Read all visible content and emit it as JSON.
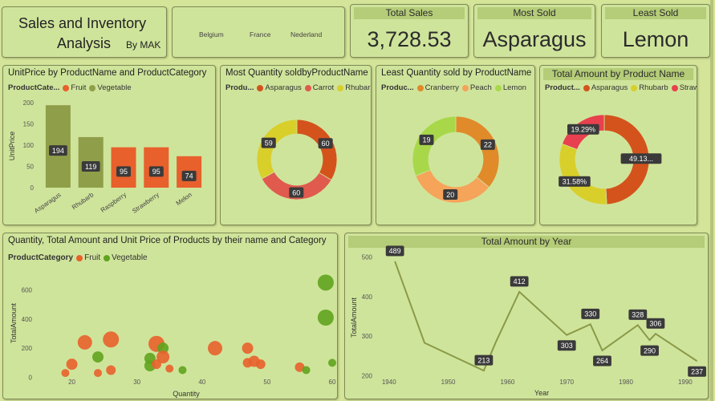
{
  "title": {
    "line1": "Sales and Inventory",
    "line2": "Analysis",
    "byline": "By MAK"
  },
  "slicer": {
    "countries": [
      "Belgium",
      "France",
      "Nederland"
    ]
  },
  "kpis": {
    "total_sales": {
      "label": "Total Sales",
      "value": "3,728.53"
    },
    "most_sold": {
      "label": "Most Sold",
      "value": "Asparagus"
    },
    "least_sold": {
      "label": "Least Sold",
      "value": "Lemon"
    }
  },
  "colors": {
    "fruit": "#e8602c",
    "vegetable": "#8f9e48",
    "asparagus": "#d4531c",
    "carrot": "#e05a4e",
    "rhubarb": "#d9cf2a",
    "cranberry": "#e08a2a",
    "peach": "#f5a45a",
    "lemon": "#a8d84a",
    "strawberry": "#e8404e",
    "green": "#5fa31e",
    "line": "#8a9a48"
  },
  "chart_data": [
    {
      "id": "unitprice",
      "type": "bar",
      "title": "UnitPrice by ProductName and ProductCategory",
      "legend_title": "ProductCate...",
      "legend": [
        "Fruit",
        "Vegetable"
      ],
      "ylabel": "UnitPrice",
      "ylim": [
        0,
        200
      ],
      "yticks": [
        "0",
        "50",
        "100",
        "150",
        "200"
      ],
      "categories": [
        "Asparagus",
        "Rhubarb",
        "Raspberry",
        "Strawberry",
        "Melon"
      ],
      "category_type": [
        "Vegetable",
        "Vegetable",
        "Fruit",
        "Fruit",
        "Fruit"
      ],
      "values": [
        194,
        119,
        95,
        95,
        74
      ]
    },
    {
      "id": "mostqty",
      "type": "pie",
      "title": "Most Quantity soldbyProductName",
      "legend_title": "Produ...",
      "labels": [
        "Asparagus",
        "Carrot",
        "Rhubarb"
      ],
      "values": [
        60,
        60,
        59
      ]
    },
    {
      "id": "leastqty",
      "type": "pie",
      "title": "Least Quantity sold by ProductName",
      "legend_title": "Produc...",
      "labels": [
        "Cranberry",
        "Peach",
        "Lemon"
      ],
      "values": [
        22,
        20,
        19
      ]
    },
    {
      "id": "totalamt",
      "type": "pie",
      "title": "Total Amount by Product Name",
      "legend_title": "Product...",
      "labels": [
        "Asparagus",
        "Rhubarb",
        "Strawbe..."
      ],
      "values": [
        49.13,
        31.58,
        19.29
      ],
      "value_labels": [
        "49.13...",
        "31.58%",
        "19.29%"
      ]
    },
    {
      "id": "scatter",
      "type": "scatter",
      "title": "Quantity, Total Amount and Unit Price of Products by their name and Category",
      "legend_title": "ProductCategory",
      "legend": [
        "Fruit",
        "Vegetable"
      ],
      "xlabel": "Quantity",
      "ylabel": "TotalAmount",
      "xlim": [
        15,
        60
      ],
      "ylim": [
        -30,
        740
      ],
      "xticks": [
        20,
        30,
        40,
        50,
        60
      ],
      "yticks": [
        0,
        200,
        400,
        600
      ],
      "points": [
        {
          "x": 19,
          "y": 30,
          "r": 5,
          "c": "Fruit"
        },
        {
          "x": 20,
          "y": 90,
          "r": 7,
          "c": "Fruit"
        },
        {
          "x": 22,
          "y": 240,
          "r": 9,
          "c": "Fruit"
        },
        {
          "x": 24,
          "y": 30,
          "r": 5,
          "c": "Fruit"
        },
        {
          "x": 24,
          "y": 140,
          "r": 7,
          "c": "Vegetable"
        },
        {
          "x": 26,
          "y": 50,
          "r": 6,
          "c": "Fruit"
        },
        {
          "x": 26,
          "y": 260,
          "r": 10,
          "c": "Fruit"
        },
        {
          "x": 32,
          "y": 130,
          "r": 7,
          "c": "Vegetable"
        },
        {
          "x": 32,
          "y": 80,
          "r": 7,
          "c": "Vegetable"
        },
        {
          "x": 33,
          "y": 230,
          "r": 10,
          "c": "Fruit"
        },
        {
          "x": 33,
          "y": 90,
          "r": 6,
          "c": "Fruit"
        },
        {
          "x": 34,
          "y": 200,
          "r": 7,
          "c": "Vegetable"
        },
        {
          "x": 34,
          "y": 140,
          "r": 8,
          "c": "Fruit"
        },
        {
          "x": 35,
          "y": 60,
          "r": 5,
          "c": "Fruit"
        },
        {
          "x": 37,
          "y": 50,
          "r": 5,
          "c": "Vegetable"
        },
        {
          "x": 42,
          "y": 200,
          "r": 9,
          "c": "Fruit"
        },
        {
          "x": 47,
          "y": 200,
          "r": 7,
          "c": "Fruit"
        },
        {
          "x": 47,
          "y": 100,
          "r": 6,
          "c": "Fruit"
        },
        {
          "x": 48,
          "y": 110,
          "r": 7,
          "c": "Fruit"
        },
        {
          "x": 49,
          "y": 90,
          "r": 6,
          "c": "Fruit"
        },
        {
          "x": 55,
          "y": 70,
          "r": 6,
          "c": "Fruit"
        },
        {
          "x": 56,
          "y": 50,
          "r": 5,
          "c": "Vegetable"
        },
        {
          "x": 59,
          "y": 650,
          "r": 10,
          "c": "Vegetable"
        },
        {
          "x": 59,
          "y": 410,
          "r": 10,
          "c": "Vegetable"
        },
        {
          "x": 60,
          "y": 100,
          "r": 5,
          "c": "Vegetable"
        }
      ]
    },
    {
      "id": "line",
      "type": "line",
      "title": "Total Amount by Year",
      "xlabel": "Year",
      "ylabel": "TotalAmount",
      "xlim": [
        1938,
        1993
      ],
      "ylim": [
        195,
        505
      ],
      "xticks": [
        1940,
        1950,
        1960,
        1970,
        1980,
        1990
      ],
      "yticks": [
        200,
        300,
        400,
        500
      ],
      "x": [
        1941,
        1946,
        1956,
        1958,
        1962,
        1970,
        1974,
        1976,
        1982,
        1984,
        1985,
        1992
      ],
      "y": [
        489,
        283,
        213,
        284,
        412,
        303,
        330,
        264,
        328,
        290,
        306,
        237
      ],
      "labeled": [
        {
          "x": 1941,
          "y": 489,
          "label": "489",
          "pos": "above"
        },
        {
          "x": 1956,
          "y": 213,
          "label": "213",
          "pos": "above"
        },
        {
          "x": 1962,
          "y": 412,
          "label": "412",
          "pos": "above"
        },
        {
          "x": 1970,
          "y": 303,
          "label": "303",
          "pos": "below"
        },
        {
          "x": 1974,
          "y": 330,
          "label": "330",
          "pos": "above"
        },
        {
          "x": 1976,
          "y": 264,
          "label": "264",
          "pos": "below"
        },
        {
          "x": 1982,
          "y": 328,
          "label": "328",
          "pos": "above"
        },
        {
          "x": 1984,
          "y": 290,
          "label": "290",
          "pos": "below"
        },
        {
          "x": 1985,
          "y": 306,
          "label": "306",
          "pos": "above"
        },
        {
          "x": 1992,
          "y": 237,
          "label": "237",
          "pos": "below"
        }
      ]
    }
  ]
}
